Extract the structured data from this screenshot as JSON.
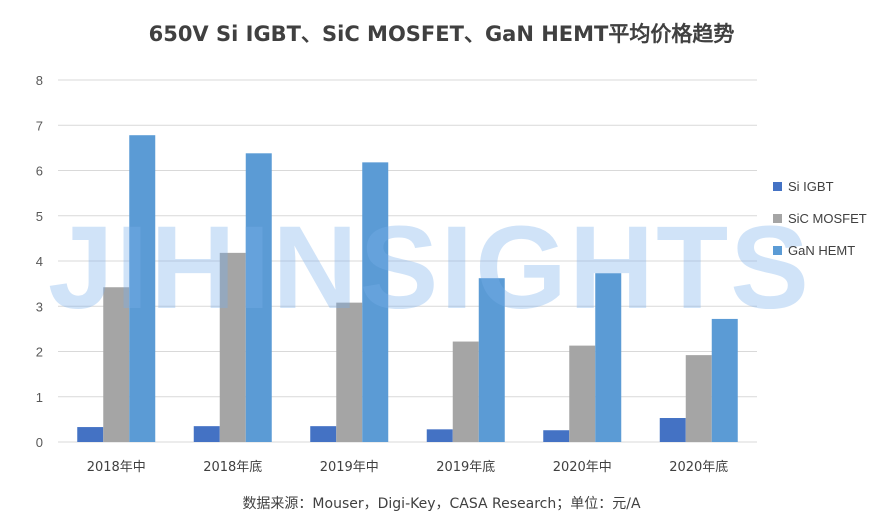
{
  "chart_data": {
    "type": "bar",
    "title": "650V Si IGBT、SiC MOSFET、GaN HEMT平均价格趋势",
    "categories": [
      "2018年中",
      "2018年底",
      "2019年中",
      "2019年底",
      "2020年中",
      "2020年底"
    ],
    "series": [
      {
        "name": "Si IGBT",
        "color": "#4472c4",
        "values": [
          0.33,
          0.35,
          0.35,
          0.28,
          0.26,
          0.53
        ]
      },
      {
        "name": "SiC MOSFET",
        "color": "#a5a5a5",
        "values": [
          3.42,
          4.18,
          3.08,
          2.22,
          2.13,
          1.92
        ]
      },
      {
        "name": "GaN HEMT",
        "color": "#5b9bd5",
        "values": [
          6.78,
          6.38,
          6.18,
          3.62,
          3.73,
          2.72
        ]
      }
    ],
    "y_ticks": [
      "0",
      "1",
      "2",
      "3",
      "4",
      "5",
      "6",
      "7",
      "8"
    ],
    "ylim": [
      0,
      8
    ],
    "grid": true,
    "legend_position": "right",
    "source_note": "数据来源：Mouser，Digi-Key，CASA Research；单位：元/A",
    "watermark": "JIHINSIGHTS"
  }
}
